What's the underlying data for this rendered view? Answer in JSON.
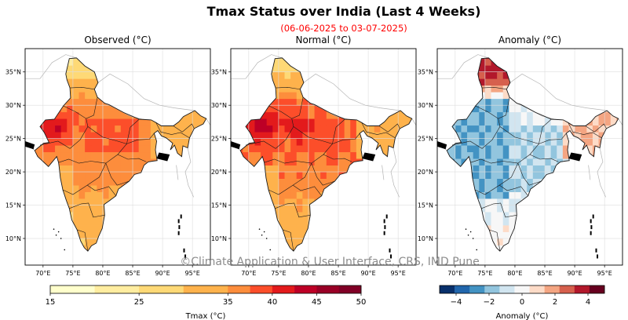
{
  "title": "Tmax Status over India (Last 4 Weeks)",
  "subtitle": "(06-06-2025 to 03-07-2025)",
  "watermark": "©Climate Application & User Interface, CRS, IMD Pune",
  "colors": {
    "subtitle": "#ff0000",
    "watermark": "#8c8c8c",
    "map_boundary": "#1a1a1a",
    "neighbour_boundary": "#b4b4b4"
  },
  "panels": [
    {
      "title": "Observed (°C)",
      "scheme": "tmax",
      "field": "observed"
    },
    {
      "title": "Normal (°C)",
      "scheme": "tmax",
      "field": "normal"
    },
    {
      "title": "Anomaly (°C)",
      "scheme": "anomaly",
      "field": "anomaly"
    }
  ],
  "axes": {
    "lat_labels": [
      "35°N",
      "30°N",
      "25°N",
      "20°N",
      "15°N",
      "10°N"
    ],
    "lat_values": [
      35,
      30,
      25,
      20,
      15,
      10
    ],
    "lon_labels": [
      "70°E",
      "75°E",
      "80°E",
      "85°E",
      "90°E",
      "95°E"
    ],
    "lon_values": [
      70,
      75,
      80,
      85,
      90,
      95
    ],
    "lon_range": [
      67,
      98
    ],
    "lat_range": [
      6,
      38.5
    ]
  },
  "colorbars": [
    {
      "name": "tmax",
      "label": "Tmax (°C)",
      "tick_labels": [
        "15",
        "25",
        "35",
        "40",
        "45",
        "50"
      ],
      "tick_values": [
        15,
        25,
        35,
        40,
        45,
        50
      ],
      "range": [
        15,
        50
      ],
      "boundaries": [
        15,
        20,
        25,
        30,
        35,
        37.5,
        40,
        42.5,
        45,
        47.5,
        50
      ],
      "colors": [
        "#ffffcc",
        "#ffeda0",
        "#fed976",
        "#feb24c",
        "#fd8d3c",
        "#fc4e2a",
        "#e31a1c",
        "#bd0026",
        "#990026",
        "#800026"
      ]
    },
    {
      "name": "anomaly",
      "label": "Anomaly (°C)",
      "tick_labels": [
        "−4",
        "−2",
        "0",
        "2",
        "4"
      ],
      "tick_values": [
        -4,
        -2,
        0,
        2,
        4
      ],
      "range": [
        -5,
        5
      ],
      "colors": [
        "#08306b",
        "#2166ac",
        "#4393c3",
        "#92c5de",
        "#d1e5f0",
        "#f7f7f7",
        "#fddbc7",
        "#f4a582",
        "#d6604d",
        "#b2182b",
        "#67001f"
      ]
    }
  ]
}
